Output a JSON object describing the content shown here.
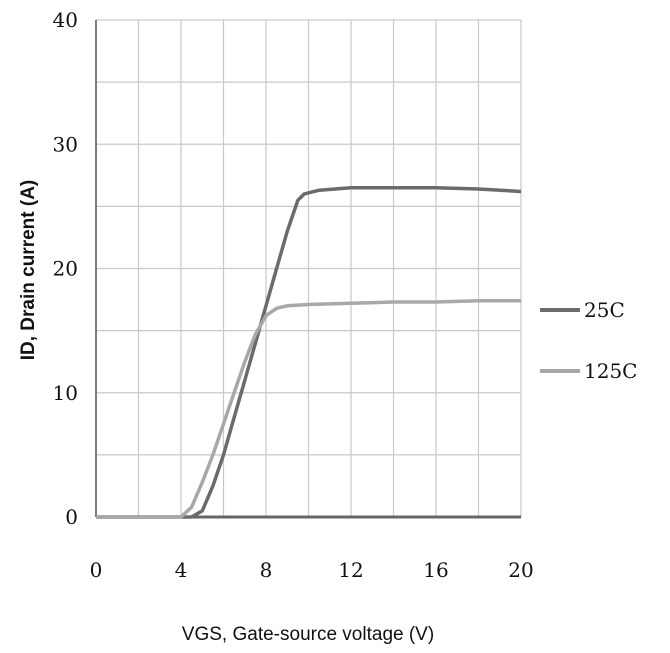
{
  "chart_data": {
    "type": "line",
    "xlabel": "VGS, Gate-source voltage (V)",
    "ylabel": "ID, Drain current (A)",
    "xlim": [
      0,
      20
    ],
    "ylim": [
      0,
      40
    ],
    "xticks": [
      "0",
      "4",
      "8",
      "12",
      "16",
      "20"
    ],
    "yticks": [
      "0",
      "10",
      "20",
      "30",
      "40"
    ],
    "grid": true,
    "legend_position": "right",
    "series": [
      {
        "name": "25C",
        "color": "#6b6b6b",
        "x": [
          0,
          4.5,
          5.0,
          5.5,
          6.0,
          6.5,
          7.0,
          7.5,
          8.0,
          8.5,
          9.0,
          9.5,
          9.8,
          10.5,
          12,
          14,
          16,
          18,
          20
        ],
        "y": [
          0,
          0,
          0.5,
          2.5,
          5.0,
          8.0,
          11.0,
          14.0,
          17.0,
          20.0,
          23.0,
          25.5,
          26.0,
          26.3,
          26.5,
          26.5,
          26.5,
          26.4,
          26.2
        ]
      },
      {
        "name": "125C",
        "color": "#a8a8a8",
        "x": [
          0,
          4.0,
          4.5,
          5.0,
          5.5,
          6.0,
          6.5,
          7.0,
          7.5,
          8.0,
          8.5,
          9.0,
          10,
          12,
          14,
          16,
          18,
          20
        ],
        "y": [
          0,
          0,
          0.8,
          2.8,
          5.0,
          7.5,
          10.0,
          12.5,
          14.7,
          16.2,
          16.8,
          17.0,
          17.1,
          17.2,
          17.3,
          17.3,
          17.4,
          17.4
        ]
      }
    ]
  }
}
